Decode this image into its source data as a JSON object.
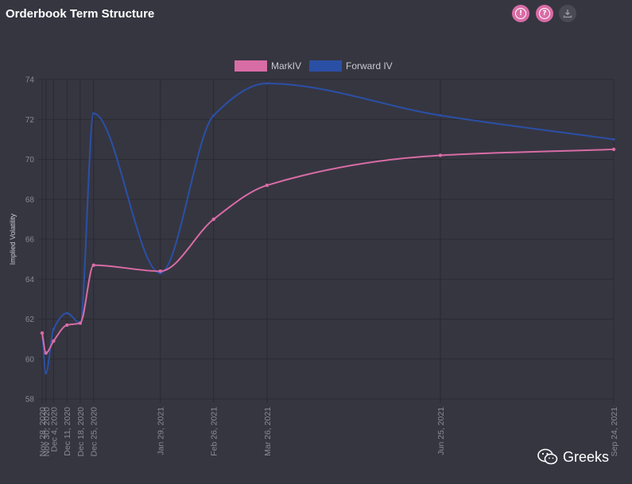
{
  "header": {
    "title": "Orderbook Term Structure",
    "icons": [
      "alert-icon",
      "help-icon",
      "download-icon"
    ],
    "alert_glyph": "!",
    "help_glyph": "?"
  },
  "watermark": {
    "text": "Greeks"
  },
  "colors": {
    "background": "#363641",
    "grid": "#2a2a33",
    "mark": "#d86ca5",
    "forward": "#2a50a6",
    "tick": "#8a8a96"
  },
  "chart_data": {
    "type": "line",
    "title": "",
    "xlabel": "",
    "ylabel": "Implied Volatility",
    "ylim": [
      58,
      74
    ],
    "yticks": [
      58,
      60,
      62,
      64,
      66,
      68,
      70,
      72,
      74
    ],
    "legend_position": "top-center",
    "grid": true,
    "xticks": [
      {
        "label": "Nov 28, 2020",
        "date": "2020-11-28"
      },
      {
        "label": "Nov 30, 2020",
        "date": "2020-11-30"
      },
      {
        "label": "Dec 4, 2020",
        "date": "2020-12-04"
      },
      {
        "label": "Dec 11, 2020",
        "date": "2020-12-11"
      },
      {
        "label": "Dec 18, 2020",
        "date": "2020-12-18"
      },
      {
        "label": "Dec 25, 2020",
        "date": "2020-12-25"
      },
      {
        "label": "Jan 29, 2021",
        "date": "2021-01-29"
      },
      {
        "label": "Feb 26, 2021",
        "date": "2021-02-26"
      },
      {
        "label": "Mar 26, 2021",
        "date": "2021-03-26"
      },
      {
        "label": "Jun 25, 2021",
        "date": "2021-06-25"
      },
      {
        "label": "Sep 24, 2021",
        "date": "2021-09-24"
      }
    ],
    "series": [
      {
        "name": "MarkIV",
        "color": "#d86ca5",
        "points": [
          {
            "date": "2020-11-28",
            "value": 61.3
          },
          {
            "date": "2020-11-30",
            "value": 60.3
          },
          {
            "date": "2020-12-04",
            "value": 60.9
          },
          {
            "date": "2020-12-11",
            "value": 61.7
          },
          {
            "date": "2020-12-18",
            "value": 61.8
          },
          {
            "date": "2020-12-25",
            "value": 64.7
          },
          {
            "date": "2021-01-29",
            "value": 64.4
          },
          {
            "date": "2021-02-26",
            "value": 67.0
          },
          {
            "date": "2021-03-26",
            "value": 68.7
          },
          {
            "date": "2021-06-25",
            "value": 70.2
          },
          {
            "date": "2021-09-24",
            "value": 70.5
          }
        ]
      },
      {
        "name": "Forward IV",
        "color": "#2a50a6",
        "points": [
          {
            "date": "2020-11-28",
            "value": 61.3
          },
          {
            "date": "2020-11-30",
            "value": 59.3
          },
          {
            "date": "2020-12-04",
            "value": 61.5
          },
          {
            "date": "2020-12-11",
            "value": 62.3
          },
          {
            "date": "2020-12-18",
            "value": 61.8
          },
          {
            "date": "2020-12-25",
            "value": 72.3
          },
          {
            "date": "2021-01-29",
            "value": 64.3
          },
          {
            "date": "2021-02-26",
            "value": 72.2
          },
          {
            "date": "2021-03-26",
            "value": 73.8
          },
          {
            "date": "2021-06-25",
            "value": 72.2
          },
          {
            "date": "2021-09-24",
            "value": 71.0
          }
        ]
      }
    ]
  }
}
